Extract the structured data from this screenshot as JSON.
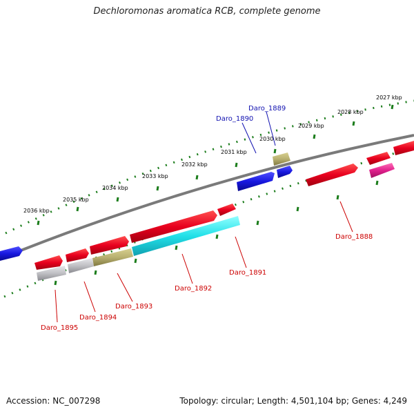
{
  "title": "Dechloromonas aromatica RCB, complete genome",
  "footer": {
    "accession": "Accession: NC_007298",
    "stats": "Topology: circular; Length: 4,501,104 bp; Genes: 4,249"
  },
  "ruler": {
    "labels": [
      "2036 kbp",
      "2035 kbp",
      "2034 kbp",
      "2033 kbp",
      "2032 kbp",
      "2031 kbp",
      "2030 kbp",
      "2029 kbp",
      "2028 kbp",
      "2027 kbp"
    ]
  },
  "genes": {
    "labels": [
      "Daro_1889",
      "Daro_1890",
      "Daro_1888",
      "Daro_1891",
      "Daro_1892",
      "Daro_1893",
      "Daro_1894",
      "Daro_1895"
    ]
  },
  "colors": {
    "forward": "#e8001e",
    "reverse": "#1818e0",
    "backbone": "#7a7a7a",
    "ruler": "#1c7d1c",
    "cyan": "#22e0e8",
    "khaki": "#b8b070",
    "grey": "#c0c0c4",
    "magenta": "#e0208c",
    "forward_label": "#cc0000",
    "reverse_label": "#1010b0"
  }
}
